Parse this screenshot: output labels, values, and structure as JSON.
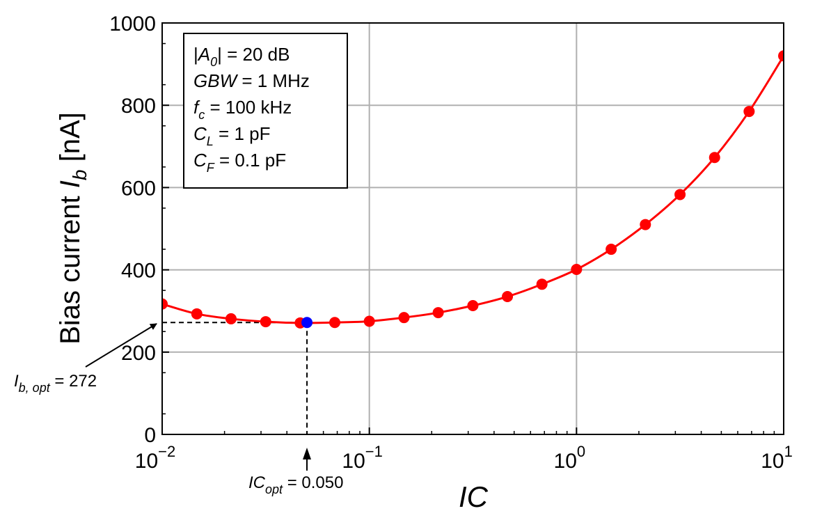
{
  "chart_data": {
    "type": "line",
    "xscale": "log",
    "xlim": [
      0.01,
      10
    ],
    "ylim": [
      0,
      1000
    ],
    "grid": true,
    "xlabel": "IC",
    "ylabel": {
      "main": "Bias current ",
      "symbol": "I",
      "sub": "b",
      "unit": " [nA]"
    },
    "x_ticks": [
      {
        "base": "10",
        "exp": "−2",
        "value": 0.01
      },
      {
        "base": "10",
        "exp": "−1",
        "value": 0.1
      },
      {
        "base": "10",
        "exp": "0",
        "value": 1
      },
      {
        "base": "10",
        "exp": "1",
        "value": 10
      }
    ],
    "y_ticks": [
      "0",
      "200",
      "400",
      "600",
      "800",
      "1000"
    ],
    "y_tick_values": [
      0,
      200,
      400,
      600,
      800,
      1000
    ],
    "series": [
      {
        "color": "#ff0000",
        "x": [
          0.01,
          0.0147,
          0.0215,
          0.0316,
          0.0464,
          0.0681,
          0.1,
          0.147,
          0.215,
          0.316,
          0.464,
          0.681,
          1.0,
          1.47,
          2.15,
          3.16,
          4.64,
          6.81,
          10.0
        ],
        "y": [
          317,
          293,
          281,
          274,
          271,
          272,
          275,
          284,
          296,
          313,
          335,
          365,
          401,
          450,
          510,
          583,
          673,
          785,
          920
        ]
      }
    ],
    "optimum": {
      "x": 0.05,
      "y": 272,
      "color": "#0000ff"
    },
    "legend_box": [
      {
        "pre": "|",
        "sym": "A",
        "sub": "0",
        "post": "| = ",
        "val": "20 dB"
      },
      {
        "pre": "",
        "sym": "GBW",
        "sub": "",
        "post": " = ",
        "val": "1 MHz"
      },
      {
        "pre": "",
        "sym": "f",
        "sub": "c",
        "post": " = ",
        "val": "100 kHz"
      },
      {
        "pre": "",
        "sym": "C",
        "sub": "L",
        "post": " = ",
        "val": "1 pF"
      },
      {
        "pre": "",
        "sym": "C",
        "sub": "F",
        "post": " = ",
        "val": "0.1 pF"
      }
    ],
    "annotations": {
      "ib_opt": {
        "sym": "I",
        "sub": "b, opt",
        "eq": " = ",
        "val": "272"
      },
      "ic_opt": {
        "sym": "IC",
        "sub": "opt",
        "eq": " = ",
        "val": "0.050"
      }
    }
  }
}
